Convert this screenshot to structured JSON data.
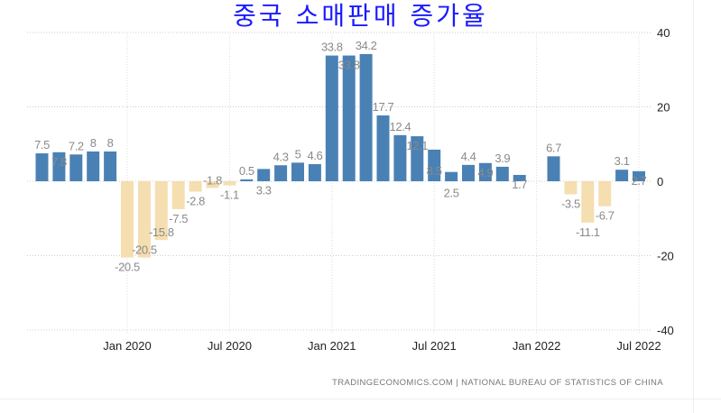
{
  "chart_data": {
    "type": "bar",
    "title": "중국 소매판매 증가율",
    "source": "TRADINGECONOMICS.COM | NATIONAL BUREAU OF STATISTICS OF CHINA",
    "categories": [
      "Aug 2019",
      "Sep 2019",
      "Oct 2019",
      "Nov 2019",
      "Dec 2019",
      "Jan 2020",
      "Feb 2020",
      "Mar 2020",
      "Apr 2020",
      "May 2020",
      "Jun 2020",
      "Jul 2020",
      "Aug 2020",
      "Sep 2020",
      "Oct 2020",
      "Nov 2020",
      "Dec 2020",
      "Jan 2021",
      "Feb 2021",
      "Mar 2021",
      "Apr 2021",
      "May 2021",
      "Jun 2021",
      "Jul 2021",
      "Aug 2021",
      "Sep 2021",
      "Oct 2021",
      "Nov 2021",
      "Dec 2021",
      "Jan 2022",
      "Feb 2022",
      "Mar 2022",
      "Apr 2022",
      "May 2022",
      "Jun 2022",
      "Jul 2022"
    ],
    "values": [
      7.5,
      7.8,
      7.2,
      8,
      8,
      -20.5,
      -20.5,
      -15.8,
      -7.5,
      -2.8,
      -1.8,
      -1.1,
      0.5,
      3.3,
      4.3,
      5,
      4.6,
      33.8,
      33.8,
      34.2,
      17.7,
      12.4,
      12.1,
      8.5,
      2.5,
      4.4,
      4.9,
      3.9,
      1.7,
      null,
      6.7,
      -3.5,
      -11.1,
      -6.7,
      3.1,
      2.7
    ],
    "x_ticks": [
      "Jan 2020",
      "Jul 2020",
      "Jan 2021",
      "Jul 2021",
      "Jan 2022",
      "Jul 2022"
    ],
    "y_ticks": [
      "40",
      "20",
      "0",
      "-20",
      "-40"
    ],
    "ylim": [
      -40,
      40
    ],
    "grid": true,
    "colors": {
      "positive": "#4a81b5",
      "negative": "#f5deb0",
      "label": "#8a8a8a",
      "title": "#1a1aff"
    }
  }
}
